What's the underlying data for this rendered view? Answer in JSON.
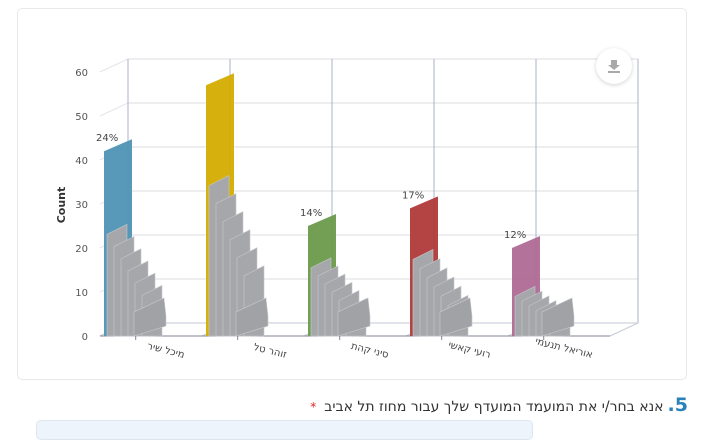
{
  "chart_data": {
    "type": "bar",
    "style": "3d-column",
    "title": "",
    "xlabel": "",
    "ylabel": "Count",
    "ylim": [
      0,
      60
    ],
    "yticks": [
      0,
      10,
      20,
      30,
      40,
      50,
      60
    ],
    "grid": true,
    "legend": "none",
    "categories": [
      "מיכל שיר",
      "זוהר טל",
      "סיני קהת",
      "רועי קאשי",
      "אוריאל תנעמי"
    ],
    "values": [
      42,
      57,
      25,
      29,
      20
    ],
    "percent_labels": [
      "24%",
      "",
      "14%",
      "17%",
      "12%"
    ],
    "colors": [
      "#4f93b5",
      "#d4ad00",
      "#6a9a4a",
      "#b03a3a",
      "#ae6a93"
    ]
  },
  "toolbar": {
    "download_icon": "download-icon"
  },
  "question": {
    "number": "5.",
    "text": "אנא בחר/י את המועמד המועדף שלך עבור מחוז תל אביב",
    "required_marker": "*"
  }
}
